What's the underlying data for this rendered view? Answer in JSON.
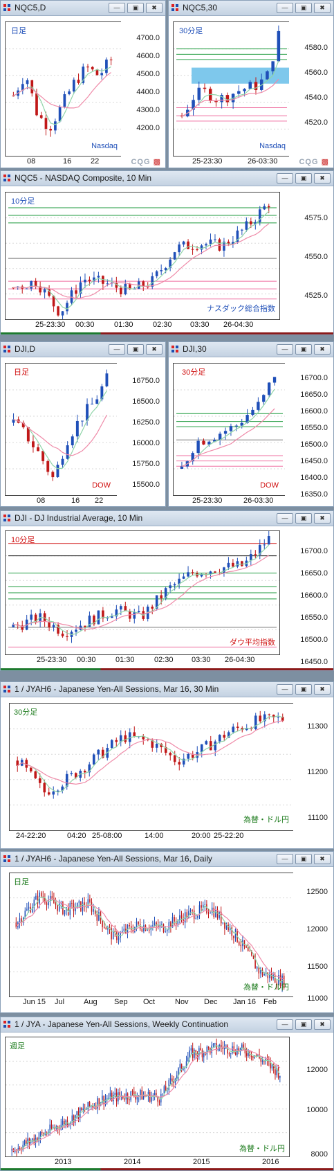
{
  "title_buttons": {
    "minimize": "—",
    "restore": "▣",
    "close": "✖"
  },
  "brand": {
    "text": "CQG"
  },
  "colors": {
    "up": "#1f4fb8",
    "down": "#c01818",
    "ma_fast": "#8fd4a8",
    "ma_slow": "#ef8aa8",
    "grid": "#d8d8d8"
  },
  "windows": [
    {
      "id": "nq-daily",
      "title": "NQC5,D",
      "label": "日足",
      "label_color": "#1f4fb8",
      "bottom_label": "Nasdaq",
      "bottom_label_color": "#1f4fb8",
      "yticks": [
        "4700.0",
        "4600.0",
        "4500.0",
        "4400.0",
        "4300.0",
        "4200.0"
      ],
      "xticks": [
        "08",
        "16",
        "22"
      ]
    },
    {
      "id": "nq-30",
      "title": "NQC5,30",
      "label": "30分足",
      "label_color": "#1f4fb8",
      "bottom_label": "Nasdaq",
      "bottom_label_color": "#1f4fb8",
      "yticks": [
        "4580.0",
        "4560.0",
        "4540.0",
        "4520.0"
      ],
      "xticks": [
        "25-23:30",
        "26-03:30"
      ]
    },
    {
      "id": "nq-10",
      "title": "NQC5 - NASDAQ Composite, 10 Min",
      "label": "10分足",
      "label_color": "#1f4fb8",
      "bottom_label": "ナスダック総合指数",
      "bottom_label_color": "#1f4fb8",
      "yticks": [
        "4575.0",
        "4550.0",
        "4525.0"
      ],
      "xticks": [
        "25-23:30",
        "00:30",
        "01:30",
        "02:30",
        "03:30",
        "26-04:30"
      ]
    },
    {
      "id": "dji-daily",
      "title": "DJI,D",
      "label": "日足",
      "label_color": "#d01010",
      "bottom_label": "DOW",
      "bottom_label_color": "#d01010",
      "yticks": [
        "16750.0",
        "16500.0",
        "16250.0",
        "16000.0",
        "15750.0",
        "15500.0"
      ],
      "xticks": [
        "08",
        "16",
        "22"
      ]
    },
    {
      "id": "dji-30",
      "title": "DJI,30",
      "label": "30分足",
      "label_color": "#d01010",
      "bottom_label": "DOW",
      "bottom_label_color": "#d01010",
      "yticks": [
        "16700.0",
        "16650.0",
        "16600.0",
        "16550.0",
        "16500.0",
        "16450.0",
        "16400.0",
        "16350.0"
      ],
      "xticks": [
        "25-23:30",
        "26-03:30"
      ]
    },
    {
      "id": "dji-10",
      "title": "DJI - DJ Industrial Average, 10 Min",
      "label": "10分足",
      "label_color": "#d01010",
      "bottom_label": "ダウ平均指数",
      "bottom_label_color": "#d01010",
      "yticks": [
        "16700.0",
        "16650.0",
        "16600.0",
        "16550.0",
        "16500.0",
        "16450.0"
      ],
      "xticks": [
        "25-23:30",
        "00:30",
        "01:30",
        "02:30",
        "03:30",
        "26-04:30"
      ]
    },
    {
      "id": "jy-30",
      "title": "1 / JYAH6 - Japanese Yen-All Sessions, Mar 16, 30 Min",
      "label": "30分足",
      "label_color": "#1a7a1a",
      "bottom_label": "為替・ドル円",
      "bottom_label_color": "#1a7a1a",
      "yticks": [
        "11300",
        "11200",
        "11100"
      ],
      "xticks": [
        "24-22:20",
        "04:20",
        "25-08:00",
        "14:00",
        "20:00",
        "25-22:20"
      ]
    },
    {
      "id": "jy-daily",
      "title": "1 / JYAH6 - Japanese Yen-All Sessions, Mar 16, Daily",
      "label": "日足",
      "label_color": "#1a7a1a",
      "bottom_label": "為替・ドル円",
      "bottom_label_color": "#1a7a1a",
      "yticks": [
        "12500",
        "12000",
        "11500",
        "11000"
      ],
      "xticks": [
        "Jun 15",
        "Jul",
        "Aug",
        "Sep",
        "Oct",
        "Nov",
        "Dec",
        "Jan 16",
        "Feb"
      ]
    },
    {
      "id": "jy-weekly",
      "title": "1 / JYA - Japanese Yen-All Sessions, Weekly Continuation",
      "label": "週足",
      "label_color": "#1a7a1a",
      "bottom_label": "為替・ドル円",
      "bottom_label_color": "#1a7a1a",
      "yticks": [
        "12000",
        "10000",
        "8000"
      ],
      "xticks": [
        "2013",
        "2014",
        "2015",
        "2016"
      ]
    }
  ]
}
